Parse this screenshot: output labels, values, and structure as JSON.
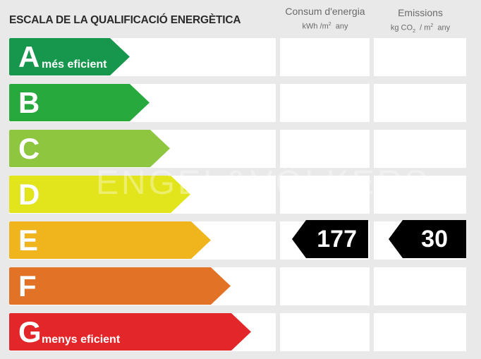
{
  "title": "ESCALA DE LA QUALIFICACIÓ ENERGÈTICA",
  "columns": {
    "consum": {
      "label": "Consum d'energia",
      "unit_prefix": "kWh /m",
      "unit_sup": "2",
      "unit_suffix": "  any"
    },
    "emissions": {
      "label": "Emissions",
      "unit_prefix": "kg CO",
      "unit_sub": "2",
      "unit_mid": "  / m",
      "unit_sup": "2",
      "unit_suffix": "  any"
    }
  },
  "ratings": [
    {
      "letter": "A",
      "sublabel": "més eficient",
      "color": "#17974d"
    },
    {
      "letter": "B",
      "sublabel": "",
      "color": "#28a93e"
    },
    {
      "letter": "C",
      "sublabel": "",
      "color": "#8ec63f"
    },
    {
      "letter": "D",
      "sublabel": "",
      "color": "#e3e51c"
    },
    {
      "letter": "E",
      "sublabel": "",
      "color": "#f0b41d"
    },
    {
      "letter": "F",
      "sublabel": "",
      "color": "#e27326"
    },
    {
      "letter": "G",
      "sublabel": "menys eficient",
      "color": "#e3262a"
    }
  ],
  "result": {
    "rating": "E",
    "consum": "177",
    "emissions": "30"
  },
  "watermark": "ENGEL&VÖLKERS"
}
